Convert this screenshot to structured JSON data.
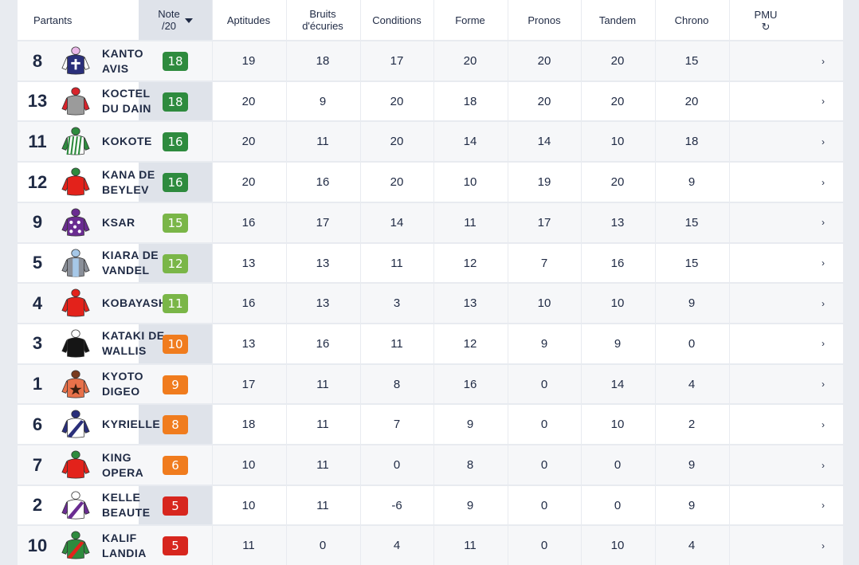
{
  "header": {
    "partants": "Partants",
    "note_line1": "Note",
    "note_line2": "/20",
    "aptitudes": "Aptitudes",
    "bruits_line1": "Bruits",
    "bruits_line2": "d'écuries",
    "conditions": "Conditions",
    "forme": "Forme",
    "pronos": "Pronos",
    "tandem": "Tandem",
    "chrono": "Chrono",
    "pmu": "PMU",
    "refresh_icon": "↻"
  },
  "chevron": "›",
  "rows": [
    {
      "num": "8",
      "name": "KANTO AVIS",
      "note": "18",
      "note_color": "#2e8b3e",
      "aptitudes": "19",
      "bruits": "18",
      "conditions": "17",
      "forme": "20",
      "pronos": "20",
      "tandem": "20",
      "chrono": "15",
      "silk": {
        "body": "#2a2f7a",
        "sleeve": "#ffffff",
        "cap": "#e9b7e8",
        "pattern": "cross",
        "pattern_color": "#ffffff"
      }
    },
    {
      "num": "13",
      "name": "KOCTEL DU DAIN",
      "note": "18",
      "note_color": "#2e8b3e",
      "aptitudes": "20",
      "bruits": "9",
      "conditions": "20",
      "forme": "18",
      "pronos": "20",
      "tandem": "20",
      "chrono": "20",
      "silk": {
        "body": "#9b9b9b",
        "sleeve": "#d8232a",
        "cap": "#d8232a",
        "pattern": "none",
        "pattern_color": "#d8232a"
      }
    },
    {
      "num": "11",
      "name": "KOKOTE",
      "note": "16",
      "note_color": "#2e8b3e",
      "aptitudes": "20",
      "bruits": "11",
      "conditions": "20",
      "forme": "14",
      "pronos": "14",
      "tandem": "10",
      "chrono": "18",
      "silk": {
        "body": "#ffffff",
        "sleeve": "#2e8b3e",
        "cap": "#2e8b3e",
        "pattern": "stripes",
        "pattern_color": "#2e8b3e"
      }
    },
    {
      "num": "12",
      "name": "KANA DE BEYLEV",
      "note": "16",
      "note_color": "#2e8b3e",
      "aptitudes": "20",
      "bruits": "16",
      "conditions": "20",
      "forme": "10",
      "pronos": "19",
      "tandem": "20",
      "chrono": "9",
      "silk": {
        "body": "#e3221b",
        "sleeve": "#e3221b",
        "cap": "#2e8b3e",
        "pattern": "none",
        "pattern_color": "#e3221b"
      }
    },
    {
      "num": "9",
      "name": "KSAR",
      "note": "15",
      "note_color": "#7ab648",
      "aptitudes": "16",
      "bruits": "17",
      "conditions": "14",
      "forme": "11",
      "pronos": "17",
      "tandem": "13",
      "chrono": "15",
      "silk": {
        "body": "#6a2c91",
        "sleeve": "#6a2c91",
        "cap": "#6a2c91",
        "pattern": "stars",
        "pattern_color": "#ffffff"
      }
    },
    {
      "num": "5",
      "name": "KIARA DE VANDEL",
      "note": "12",
      "note_color": "#7ab648",
      "aptitudes": "13",
      "bruits": "13",
      "conditions": "11",
      "forme": "12",
      "pronos": "7",
      "tandem": "16",
      "chrono": "15",
      "silk": {
        "body": "#8a8f98",
        "sleeve": "#8a8f98",
        "cap": "#a6c8e8",
        "pattern": "band",
        "pattern_color": "#a6c8e8"
      }
    },
    {
      "num": "4",
      "name": "KOBAYASHI",
      "note": "11",
      "note_color": "#7ab648",
      "aptitudes": "16",
      "bruits": "13",
      "conditions": "3",
      "forme": "13",
      "pronos": "10",
      "tandem": "10",
      "chrono": "9",
      "silk": {
        "body": "#e3221b",
        "sleeve": "#e3221b",
        "cap": "#e3221b",
        "pattern": "none",
        "pattern_color": "#e3221b"
      }
    },
    {
      "num": "3",
      "name": "KATAKI DE WALLIS",
      "note": "10",
      "note_color": "#f07c1e",
      "aptitudes": "13",
      "bruits": "16",
      "conditions": "11",
      "forme": "12",
      "pronos": "9",
      "tandem": "9",
      "chrono": "0",
      "silk": {
        "body": "#151515",
        "sleeve": "#151515",
        "cap": "#ffffff",
        "pattern": "none",
        "pattern_color": "#151515"
      }
    },
    {
      "num": "1",
      "name": "KYOTO DIGEO",
      "note": "9",
      "note_color": "#f07c1e",
      "aptitudes": "17",
      "bruits": "11",
      "conditions": "8",
      "forme": "16",
      "pronos": "0",
      "tandem": "14",
      "chrono": "4",
      "silk": {
        "body": "#e8714a",
        "sleeve": "#e8714a",
        "cap": "#7a3b1e",
        "pattern": "star",
        "pattern_color": "#3a1e10"
      }
    },
    {
      "num": "6",
      "name": "KYRIELLE",
      "note": "8",
      "note_color": "#f07c1e",
      "aptitudes": "18",
      "bruits": "11",
      "conditions": "7",
      "forme": "9",
      "pronos": "0",
      "tandem": "10",
      "chrono": "2",
      "silk": {
        "body": "#ffffff",
        "sleeve": "#2a2f7a",
        "cap": "#2a2f7a",
        "pattern": "sash",
        "pattern_color": "#2a2f7a"
      }
    },
    {
      "num": "7",
      "name": "KING OPERA",
      "note": "6",
      "note_color": "#f07c1e",
      "aptitudes": "10",
      "bruits": "11",
      "conditions": "0",
      "forme": "8",
      "pronos": "0",
      "tandem": "0",
      "chrono": "9",
      "silk": {
        "body": "#e3221b",
        "sleeve": "#e3221b",
        "cap": "#2e8b3e",
        "pattern": "none",
        "pattern_color": "#e3221b"
      }
    },
    {
      "num": "2",
      "name": "KELLE BEAUTE",
      "note": "5",
      "note_color": "#d7261e",
      "aptitudes": "10",
      "bruits": "11",
      "conditions": "-6",
      "forme": "9",
      "pronos": "0",
      "tandem": "0",
      "chrono": "9",
      "silk": {
        "body": "#ffffff",
        "sleeve": "#6a2c91",
        "cap": "#ffffff",
        "pattern": "sash",
        "pattern_color": "#6a2c91"
      }
    },
    {
      "num": "10",
      "name": "KALIF LANDIA",
      "note": "5",
      "note_color": "#d7261e",
      "aptitudes": "11",
      "bruits": "0",
      "conditions": "4",
      "forme": "11",
      "pronos": "0",
      "tandem": "10",
      "chrono": "4",
      "silk": {
        "body": "#2e8b3e",
        "sleeve": "#2e8b3e",
        "cap": "#2e8b3e",
        "pattern": "sash",
        "pattern_color": "#e3221b"
      }
    }
  ]
}
